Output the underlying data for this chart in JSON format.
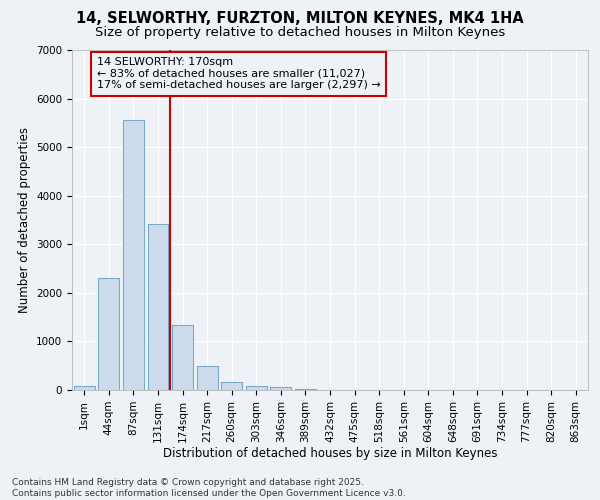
{
  "title": "14, SELWORTHY, FURZTON, MILTON KEYNES, MK4 1HA",
  "subtitle": "Size of property relative to detached houses in Milton Keynes",
  "xlabel": "Distribution of detached houses by size in Milton Keynes",
  "ylabel": "Number of detached properties",
  "categories": [
    "1sqm",
    "44sqm",
    "87sqm",
    "131sqm",
    "174sqm",
    "217sqm",
    "260sqm",
    "303sqm",
    "346sqm",
    "389sqm",
    "432sqm",
    "475sqm",
    "518sqm",
    "561sqm",
    "604sqm",
    "648sqm",
    "691sqm",
    "734sqm",
    "777sqm",
    "820sqm",
    "863sqm"
  ],
  "values": [
    75,
    2300,
    5550,
    3420,
    1330,
    490,
    175,
    90,
    60,
    30,
    10,
    5,
    3,
    2,
    1,
    1,
    0,
    0,
    0,
    0,
    0
  ],
  "bar_color": "#cddcec",
  "bar_edge_color": "#7aaaca",
  "vline_x": 3.5,
  "vline_color": "#cc0000",
  "annotation_text": "14 SELWORTHY: 170sqm\n← 83% of detached houses are smaller (11,027)\n17% of semi-detached houses are larger (2,297) →",
  "ylim": [
    0,
    7000
  ],
  "yticks": [
    0,
    1000,
    2000,
    3000,
    4000,
    5000,
    6000,
    7000
  ],
  "bg_color": "#eef2f7",
  "grid_color": "#ffffff",
  "footer": "Contains HM Land Registry data © Crown copyright and database right 2025.\nContains public sector information licensed under the Open Government Licence v3.0.",
  "title_fontsize": 10.5,
  "subtitle_fontsize": 9.5,
  "axis_label_fontsize": 8.5,
  "tick_fontsize": 7.5,
  "annotation_fontsize": 8,
  "footer_fontsize": 6.5
}
